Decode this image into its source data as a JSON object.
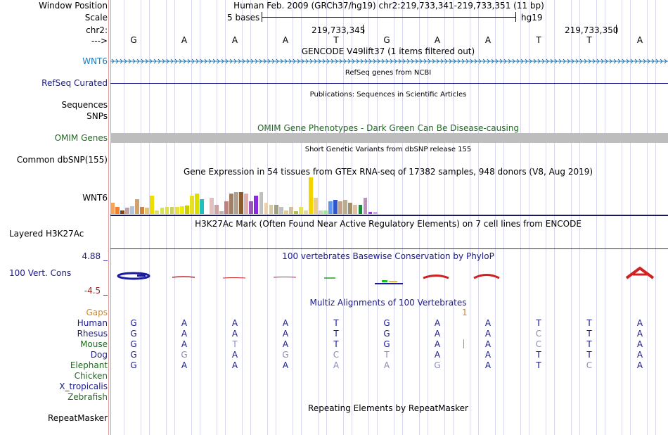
{
  "colors": {
    "blue_track": "#1f7ab5",
    "navy": "#1a1a8c",
    "green": "#1e6b1e",
    "orange": "#d9861b",
    "conservation_low": "#9a2828"
  },
  "bases": {
    "ruler": [
      "G",
      "A",
      "A",
      "A",
      "T",
      "G",
      "A",
      "A",
      "T",
      "T",
      "A"
    ],
    "positions": [
      190,
      262,
      334,
      406,
      478,
      550,
      622,
      694,
      766,
      838,
      910
    ]
  },
  "header": {
    "window_position_label": "Window Position",
    "position_text": "Human Feb. 2009 (GRCh37/hg19)   chr2:219,733,341-219,733,351 (11 bp)",
    "scale_label": "Scale",
    "scale_text": "5 bases",
    "assembly": "hg19",
    "chr_label": "chr2:",
    "coord_left": "219,733,345",
    "coord_right": "219,733,350",
    "strand_label": "--->"
  },
  "tracks": {
    "gencode_title": "GENCODE V49lift37 (1 items filtered out)",
    "gencode_gene": "WNT6",
    "refseq_title": "RefSeq genes from NCBI",
    "refseq_label": "RefSeq Curated",
    "publications_title": "Publications: Sequences in Scientific Articles",
    "sequences_label": "Sequences",
    "snps_label": "SNPs",
    "omim_title": "OMIM Gene Phenotypes - Dark Green Can Be Disease-causing",
    "omim_label": "OMIM Genes",
    "dbsnp_title": "Short Genetic Variants from dbSNP release 155",
    "dbsnp_label": "Common dbSNP(155)",
    "gtex_title": "Gene Expression in 54 tissues from GTEx RNA-seq of 17382 samples, 948 donors (V8, Aug 2019)",
    "gtex_label": "WNT6",
    "h3k27ac_title": "H3K27Ac Mark (Often Found Near Active Regulatory Elements) on 7 cell lines from ENCODE",
    "h3k27ac_label": "Layered H3K27Ac",
    "phylop_title": "100 vertebrates Basewise Conservation by PhyloP",
    "phylop_label": "100 Vert. Cons",
    "phylop_max": "4.88 _",
    "phylop_min": "-4.5 _",
    "multiz_title": "Multiz Alignments of 100 Vertebrates",
    "gaps_label": "Gaps",
    "gaps_mark": "1",
    "repeat_title": "Repeating Elements by RepeatMasker",
    "repeat_label": "RepeatMasker"
  },
  "gtex_values": [
    0.3,
    0.2,
    0.1,
    0.17,
    0.22,
    0.4,
    0.2,
    0.17,
    0.5,
    0.1,
    0.17,
    0.2,
    0.2,
    0.2,
    0.22,
    0.23,
    0.5,
    0.55,
    0.4,
    0.15,
    0.45,
    0.25,
    0.08,
    0.35,
    0.55,
    0.6,
    0.6,
    0.55,
    0.35,
    0.5,
    0.6,
    0.3,
    0.25,
    0.25,
    0.2,
    0.1,
    0.2,
    0.08,
    0.2,
    0.1,
    1.0,
    0.45,
    0.1,
    0.1,
    0.35,
    0.38,
    0.35,
    0.38,
    0.3,
    0.25,
    0.25,
    0.45,
    0.05,
    0.05
  ],
  "gtex_colors": [
    "#f4a460",
    "#f08030",
    "#8b4513",
    "#c0a0a0",
    "#b0c4de",
    "#d2a26a",
    "#cd853f",
    "#e8c070",
    "#eedd00",
    "#dfe070",
    "#d8e060",
    "#e0e040",
    "#d0d060",
    "#e8e040",
    "#eeee00",
    "#cccc00",
    "#e8e020",
    "#dddd00",
    "#20c0c0",
    "#ffffff",
    "#e0c0c0",
    "#d0a0a0",
    "#c0b0b0",
    "#c08080",
    "#a08060",
    "#b0a090",
    "#8b5a2b",
    "#e0b0b0",
    "#9b59b6",
    "#8a2be2",
    "#c0c0c0",
    "#e8d0b0",
    "#d8c8a0",
    "#a0a080",
    "#c0c0c0",
    "#e0d080",
    "#d0c0a0",
    "#b0c050",
    "#e8e060",
    "#e0d8a0",
    "#f2d400",
    "#eecc88",
    "#d0d0c0",
    "#90ee90",
    "#6495ed",
    "#3355cc",
    "#c0a090",
    "#b8b090",
    "#a09070",
    "#e0c0a0",
    "#1a8a3a",
    "#c090c0",
    "#9b30ff",
    "#d0a0ff"
  ],
  "multiz": {
    "species": [
      "Human",
      "Rhesus",
      "Mouse",
      "Dog",
      "Elephant",
      "Chicken",
      "X_tropicalis",
      "Zebrafish"
    ],
    "rows": [
      [
        "G",
        "A",
        "A",
        "A",
        "T",
        "G",
        "A",
        "A",
        "T",
        "T",
        "A"
      ],
      [
        "G",
        "A",
        "A",
        "A",
        "T",
        "G",
        "A",
        "A",
        "C",
        "T",
        "A"
      ],
      [
        "G",
        "A",
        "T",
        "A",
        "T",
        "G",
        "A",
        "A",
        "C",
        "T",
        "A"
      ],
      [
        "G",
        "G",
        "A",
        "G",
        "C",
        "T",
        "A",
        "A",
        "T",
        "T",
        "A"
      ],
      [
        "G",
        "A",
        "A",
        "A",
        "A",
        "A",
        "G",
        "A",
        "T",
        "C",
        "A"
      ],
      [],
      [],
      []
    ],
    "faded": [
      [
        0,
        0,
        0,
        0,
        0,
        0,
        0,
        0,
        0,
        0,
        0
      ],
      [
        0,
        0,
        0,
        0,
        0,
        0,
        0,
        0,
        1,
        0,
        0
      ],
      [
        0,
        0,
        1,
        0,
        0,
        0,
        0,
        0,
        1,
        0,
        0
      ],
      [
        0,
        1,
        0,
        1,
        1,
        1,
        0,
        0,
        0,
        0,
        0
      ],
      [
        0,
        0,
        0,
        0,
        1,
        1,
        1,
        0,
        0,
        1,
        0
      ]
    ]
  }
}
